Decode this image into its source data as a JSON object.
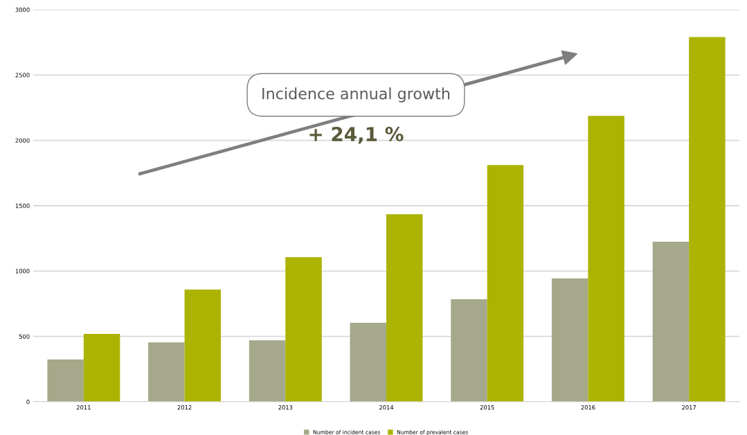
{
  "chart_data": {
    "type": "bar",
    "categories": [
      "2011",
      "2012",
      "2013",
      "2014",
      "2015",
      "2016",
      "2017"
    ],
    "series": [
      {
        "name": "Number of incident cases",
        "color": "#a5a88a",
        "values": [
          323,
          455,
          471,
          604,
          784,
          943,
          1224
        ]
      },
      {
        "name": "Number of prevalent cases",
        "color": "#acb300",
        "values": [
          519,
          858,
          1107,
          1435,
          1811,
          2188,
          2791
        ]
      }
    ],
    "ylim": [
      0,
      3000
    ],
    "yticks": [
      0,
      500,
      1000,
      1500,
      2000,
      2500,
      3000
    ],
    "grid": "y",
    "legend": "bottom",
    "annotations": [
      "Incidence annual growth",
      "+ 24,1 %"
    ]
  }
}
